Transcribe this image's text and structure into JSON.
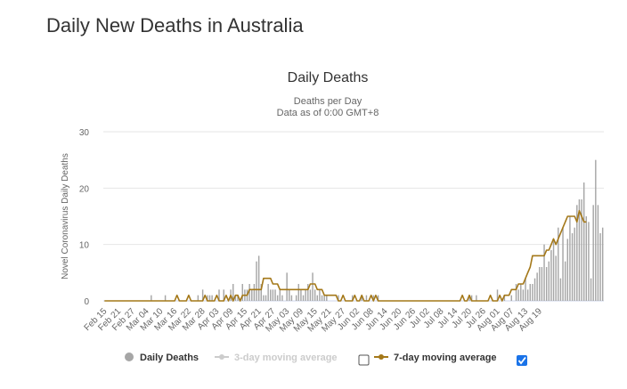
{
  "page": {
    "title": "Daily New Deaths in Australia"
  },
  "chart_data": {
    "type": "bar",
    "title": "Daily Deaths",
    "subtitle": "Deaths per Day",
    "subtitle2": "Data as of 0:00 GMT+8",
    "ylabel": "Novel Coronavirus Daily Deaths",
    "xlabel": "",
    "ylim": [
      0,
      30
    ],
    "yticks": [
      0,
      10,
      20,
      30
    ],
    "grid": true,
    "legend_position": "bottom",
    "start_date": "Feb 15",
    "x_tick_labels": [
      "Feb 15",
      "Feb 21",
      "Feb 27",
      "Mar 04",
      "Mar 10",
      "Mar 16",
      "Mar 22",
      "Mar 28",
      "Apr 03",
      "Apr 09",
      "Apr 15",
      "Apr 21",
      "Apr 27",
      "May 03",
      "May 09",
      "May 15",
      "May 21",
      "May 27",
      "Jun 02",
      "Jun 08",
      "Jun 14",
      "Jun 20",
      "Jun 26",
      "Jul 02",
      "Jul 08",
      "Jul 14",
      "Jul 20",
      "Jul 26",
      "Aug 01",
      "Aug 07",
      "Aug 13",
      "Aug 19"
    ],
    "colors": {
      "bars": "#a6a6a6",
      "avg7": "#a47819",
      "avg3": "#cccccc",
      "grid": "#e6e6e6"
    },
    "series": [
      {
        "name": "Daily Deaths",
        "type": "bar",
        "values": [
          0,
          0,
          0,
          0,
          0,
          0,
          0,
          0,
          0,
          0,
          0,
          0,
          0,
          0,
          0,
          0,
          0,
          0,
          0,
          0,
          1,
          0,
          0,
          0,
          0,
          0,
          1,
          0,
          0,
          0,
          0,
          0,
          0,
          0,
          0,
          0,
          0,
          0,
          0,
          0,
          1,
          0,
          2,
          0,
          1,
          1,
          1,
          0,
          0,
          2,
          0,
          2,
          0,
          0,
          2,
          3,
          1,
          1,
          0,
          3,
          2,
          2,
          3,
          2,
          3,
          7,
          8,
          3,
          1,
          1,
          3,
          2,
          2,
          2,
          1,
          2,
          1,
          0,
          5,
          2,
          1,
          0,
          1,
          3,
          2,
          1,
          2,
          3,
          2,
          5,
          2,
          1,
          2,
          1,
          1,
          1,
          0,
          0,
          0,
          0,
          1,
          0,
          0,
          0,
          0,
          0,
          1,
          0,
          0,
          0,
          1,
          0,
          1,
          0,
          0,
          1,
          0,
          1,
          0,
          0,
          0,
          0,
          0,
          0,
          0,
          0,
          0,
          0,
          0,
          0,
          0,
          0,
          0,
          0,
          0,
          0,
          0,
          0,
          0,
          0,
          0,
          0,
          0,
          0,
          0,
          0,
          0,
          0,
          0,
          0,
          0,
          0,
          0,
          0,
          0,
          0,
          1,
          1,
          0,
          1,
          0,
          0,
          0,
          0,
          0,
          0,
          0,
          0,
          2,
          0,
          0,
          1,
          0,
          0,
          1,
          0,
          3,
          2,
          3,
          2,
          4,
          2,
          3,
          3,
          4,
          5,
          6,
          6,
          10,
          6,
          7,
          9,
          11,
          8,
          13,
          4,
          13,
          7,
          11,
          15,
          12,
          13,
          17,
          18,
          18,
          21,
          15,
          14,
          4,
          17,
          25,
          17,
          12,
          13
        ]
      },
      {
        "name": "3-day moving average",
        "type": "line",
        "visible": false,
        "values": []
      },
      {
        "name": "7-day moving average",
        "type": "line",
        "values": [
          0,
          0,
          0,
          0,
          0,
          0,
          0,
          0,
          0,
          0,
          0,
          0,
          0,
          0,
          0,
          0,
          0,
          0,
          0,
          0,
          0,
          0,
          0,
          0,
          0,
          0,
          0,
          0,
          0,
          0,
          0,
          1,
          0,
          0,
          0,
          0,
          1,
          0,
          0,
          0,
          0,
          0,
          0,
          1,
          0,
          0,
          0,
          0,
          1,
          0,
          0,
          0,
          1,
          0,
          1,
          0,
          1,
          1,
          0,
          1,
          1,
          1,
          2,
          2,
          2,
          2,
          2,
          2,
          4,
          4,
          4,
          4,
          3,
          3,
          3,
          2,
          2,
          2,
          2,
          2,
          2,
          2,
          2,
          2,
          2,
          2,
          2,
          2,
          3,
          3,
          3,
          2,
          2,
          2,
          1,
          1,
          1,
          1,
          1,
          1,
          0,
          0,
          1,
          0,
          0,
          0,
          0,
          1,
          0,
          0,
          1,
          0,
          0,
          0,
          1,
          0,
          1,
          0,
          0,
          0,
          0,
          0,
          0,
          0,
          0,
          0,
          0,
          0,
          0,
          0,
          0,
          0,
          0,
          0,
          0,
          0,
          0,
          0,
          0,
          0,
          0,
          0,
          0,
          0,
          0,
          0,
          0,
          0,
          0,
          0,
          0,
          0,
          0,
          1,
          0,
          0,
          1,
          0,
          0,
          0,
          0,
          0,
          0,
          0,
          0,
          1,
          0,
          0,
          0,
          1,
          0,
          1,
          1,
          1,
          2,
          2,
          2,
          3,
          3,
          3,
          4,
          5,
          6,
          8,
          8,
          8,
          8,
          8,
          8,
          9,
          9,
          10,
          11,
          10,
          11,
          12,
          13,
          14,
          15,
          15,
          15,
          15,
          14,
          16,
          15,
          14,
          14
        ]
      }
    ]
  },
  "legend": {
    "items": [
      {
        "label": "Daily Deaths",
        "checkbox": false
      },
      {
        "label": "3-day moving average",
        "checkbox": true,
        "checked": false
      },
      {
        "label": "7-day moving average",
        "checkbox": true,
        "checked": true
      }
    ]
  }
}
